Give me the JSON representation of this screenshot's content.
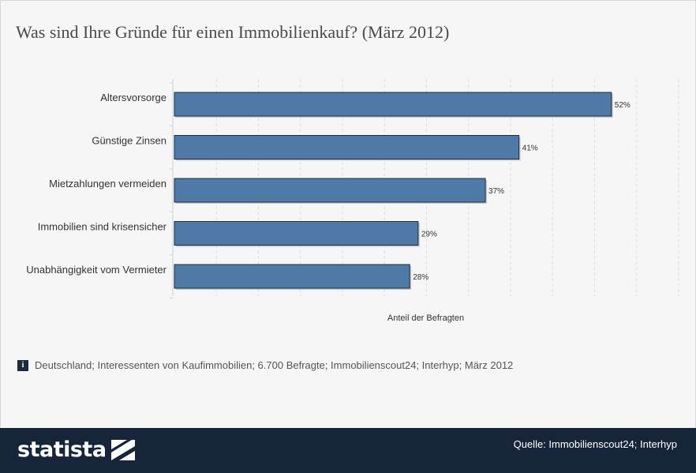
{
  "title": "Was sind Ihre Gründe für einen Immobilienkauf? (März 2012)",
  "chart_data": {
    "type": "bar",
    "orientation": "horizontal",
    "categories": [
      "Altersvorsorge",
      "Günstige Zinsen",
      "Mietzahlungen vermeiden",
      "Immobilien sind krisensicher",
      "Unabhängigkeit vom Vermieter"
    ],
    "values": [
      52,
      41,
      37,
      29,
      28
    ],
    "value_labels": [
      "52%",
      "41%",
      "37%",
      "29%",
      "28%"
    ],
    "xlabel": "Anteil der Befragten",
    "ylabel": "",
    "xlim": [
      0,
      60
    ],
    "grid": "vertical dashed",
    "bar_color": "#4f7aa7"
  },
  "note": {
    "icon": "info-icon",
    "icon_glyph": "i",
    "text": "Deutschland; Interessenten von Kaufimmobilien; 6.700 Befragte; Immobilienscout24; Interhyp; März 2012"
  },
  "footer": {
    "logo_text": "statista",
    "source": "Quelle: Immobilienscout24; Interhyp"
  },
  "colors": {
    "background": "#f6f6f6",
    "footer": "#16253a",
    "bar": "#4f7aa7",
    "bar_border": "#1f2d3d"
  }
}
